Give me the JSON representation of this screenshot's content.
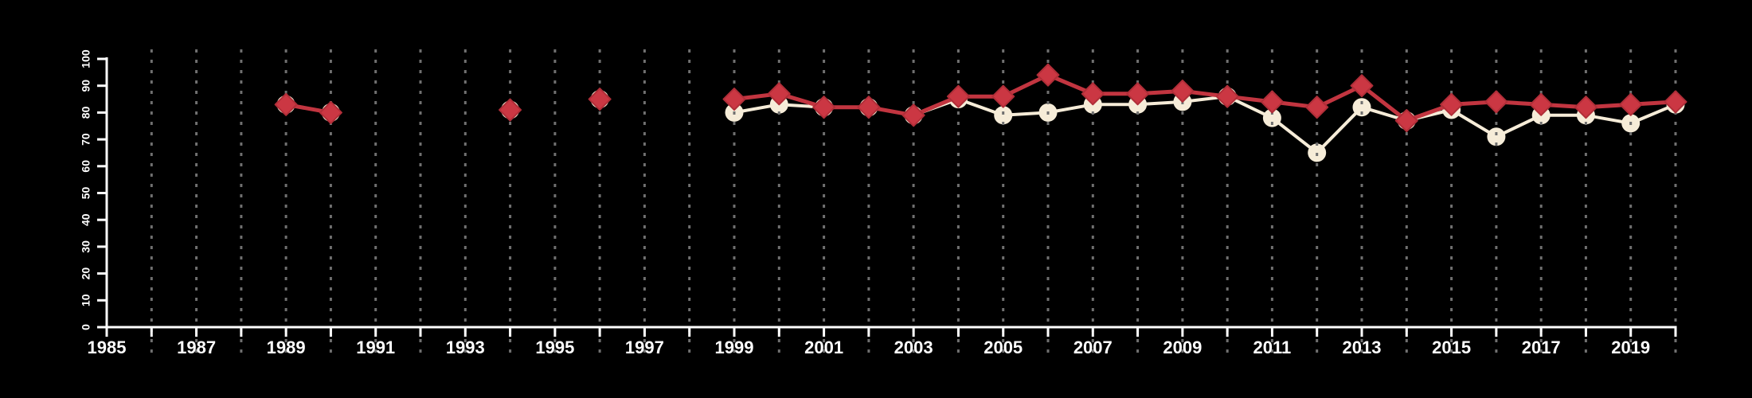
{
  "page": {
    "background_color": "#000000",
    "title": ""
  },
  "chart_data": {
    "type": "line",
    "title": "",
    "subtitle": "",
    "xlabel": "",
    "ylabel": "",
    "xlim": [
      1985,
      2020
    ],
    "ylim": [
      0,
      100
    ],
    "grid": {
      "vertical": true,
      "horizontal": false,
      "style": "dashed",
      "first_year": 1986,
      "last_year": 2020,
      "color": "#707070"
    },
    "legend_position": "none",
    "y_axis_labels": [
      "0",
      "10",
      "20",
      "30",
      "40",
      "50",
      "60",
      "70",
      "80",
      "90",
      "100"
    ],
    "y_tick_values": [
      0,
      10,
      20,
      30,
      40,
      50,
      60,
      70,
      80,
      90,
      100
    ],
    "x_axis_labels": [
      "1985",
      "1987",
      "1989",
      "1991",
      "1993",
      "1995",
      "1997",
      "1999",
      "2001",
      "2003",
      "2005",
      "2007",
      "2009",
      "2011",
      "2013",
      "2015",
      "2017",
      "2019"
    ],
    "x_label_years": [
      1985,
      1987,
      1989,
      1991,
      1993,
      1995,
      1997,
      1999,
      2001,
      2003,
      2005,
      2007,
      2009,
      2011,
      2013,
      2015,
      2017,
      2019
    ],
    "x_tick_interval": 1,
    "x_label_interval": 2,
    "series": [
      {
        "name": "cream_circles",
        "marker": "circle",
        "color": "#f6ecd8",
        "line_color": "#f6ecd8",
        "years": [
          1989,
          1990,
          1994,
          1996,
          1999,
          2000,
          2001,
          2002,
          2003,
          2004,
          2005,
          2006,
          2007,
          2008,
          2009,
          2010,
          2011,
          2012,
          2013,
          2014,
          2015,
          2016,
          2017,
          2018,
          2019,
          2020
        ],
        "values": [
          83,
          80,
          81,
          85,
          80,
          83,
          82,
          82,
          79,
          85,
          79,
          80,
          83,
          83,
          84,
          86,
          78,
          65,
          82,
          77,
          81,
          71,
          79,
          79,
          76,
          83
        ]
      },
      {
        "name": "red_diamonds",
        "marker": "diamond",
        "color": "#cb3743",
        "line_color": "#c23540",
        "years": [
          1989,
          1990,
          1994,
          1996,
          1999,
          2000,
          2001,
          2002,
          2003,
          2004,
          2005,
          2006,
          2007,
          2008,
          2009,
          2010,
          2011,
          2012,
          2013,
          2014,
          2015,
          2016,
          2017,
          2018,
          2019,
          2020
        ],
        "values": [
          83,
          80,
          81,
          85,
          85,
          87,
          82,
          82,
          79,
          86,
          86,
          94,
          87,
          87,
          88,
          86,
          84,
          82,
          90,
          77,
          83,
          84,
          83,
          82,
          83,
          84
        ]
      }
    ],
    "colors": {
      "background": "#000000",
      "axis": "#ffffff",
      "tick_label": "#ffffff",
      "gridline": "#707070",
      "red_series": "#cb3743",
      "red_series_edge": "#b02e38",
      "cream_series": "#f6ecd8"
    }
  }
}
